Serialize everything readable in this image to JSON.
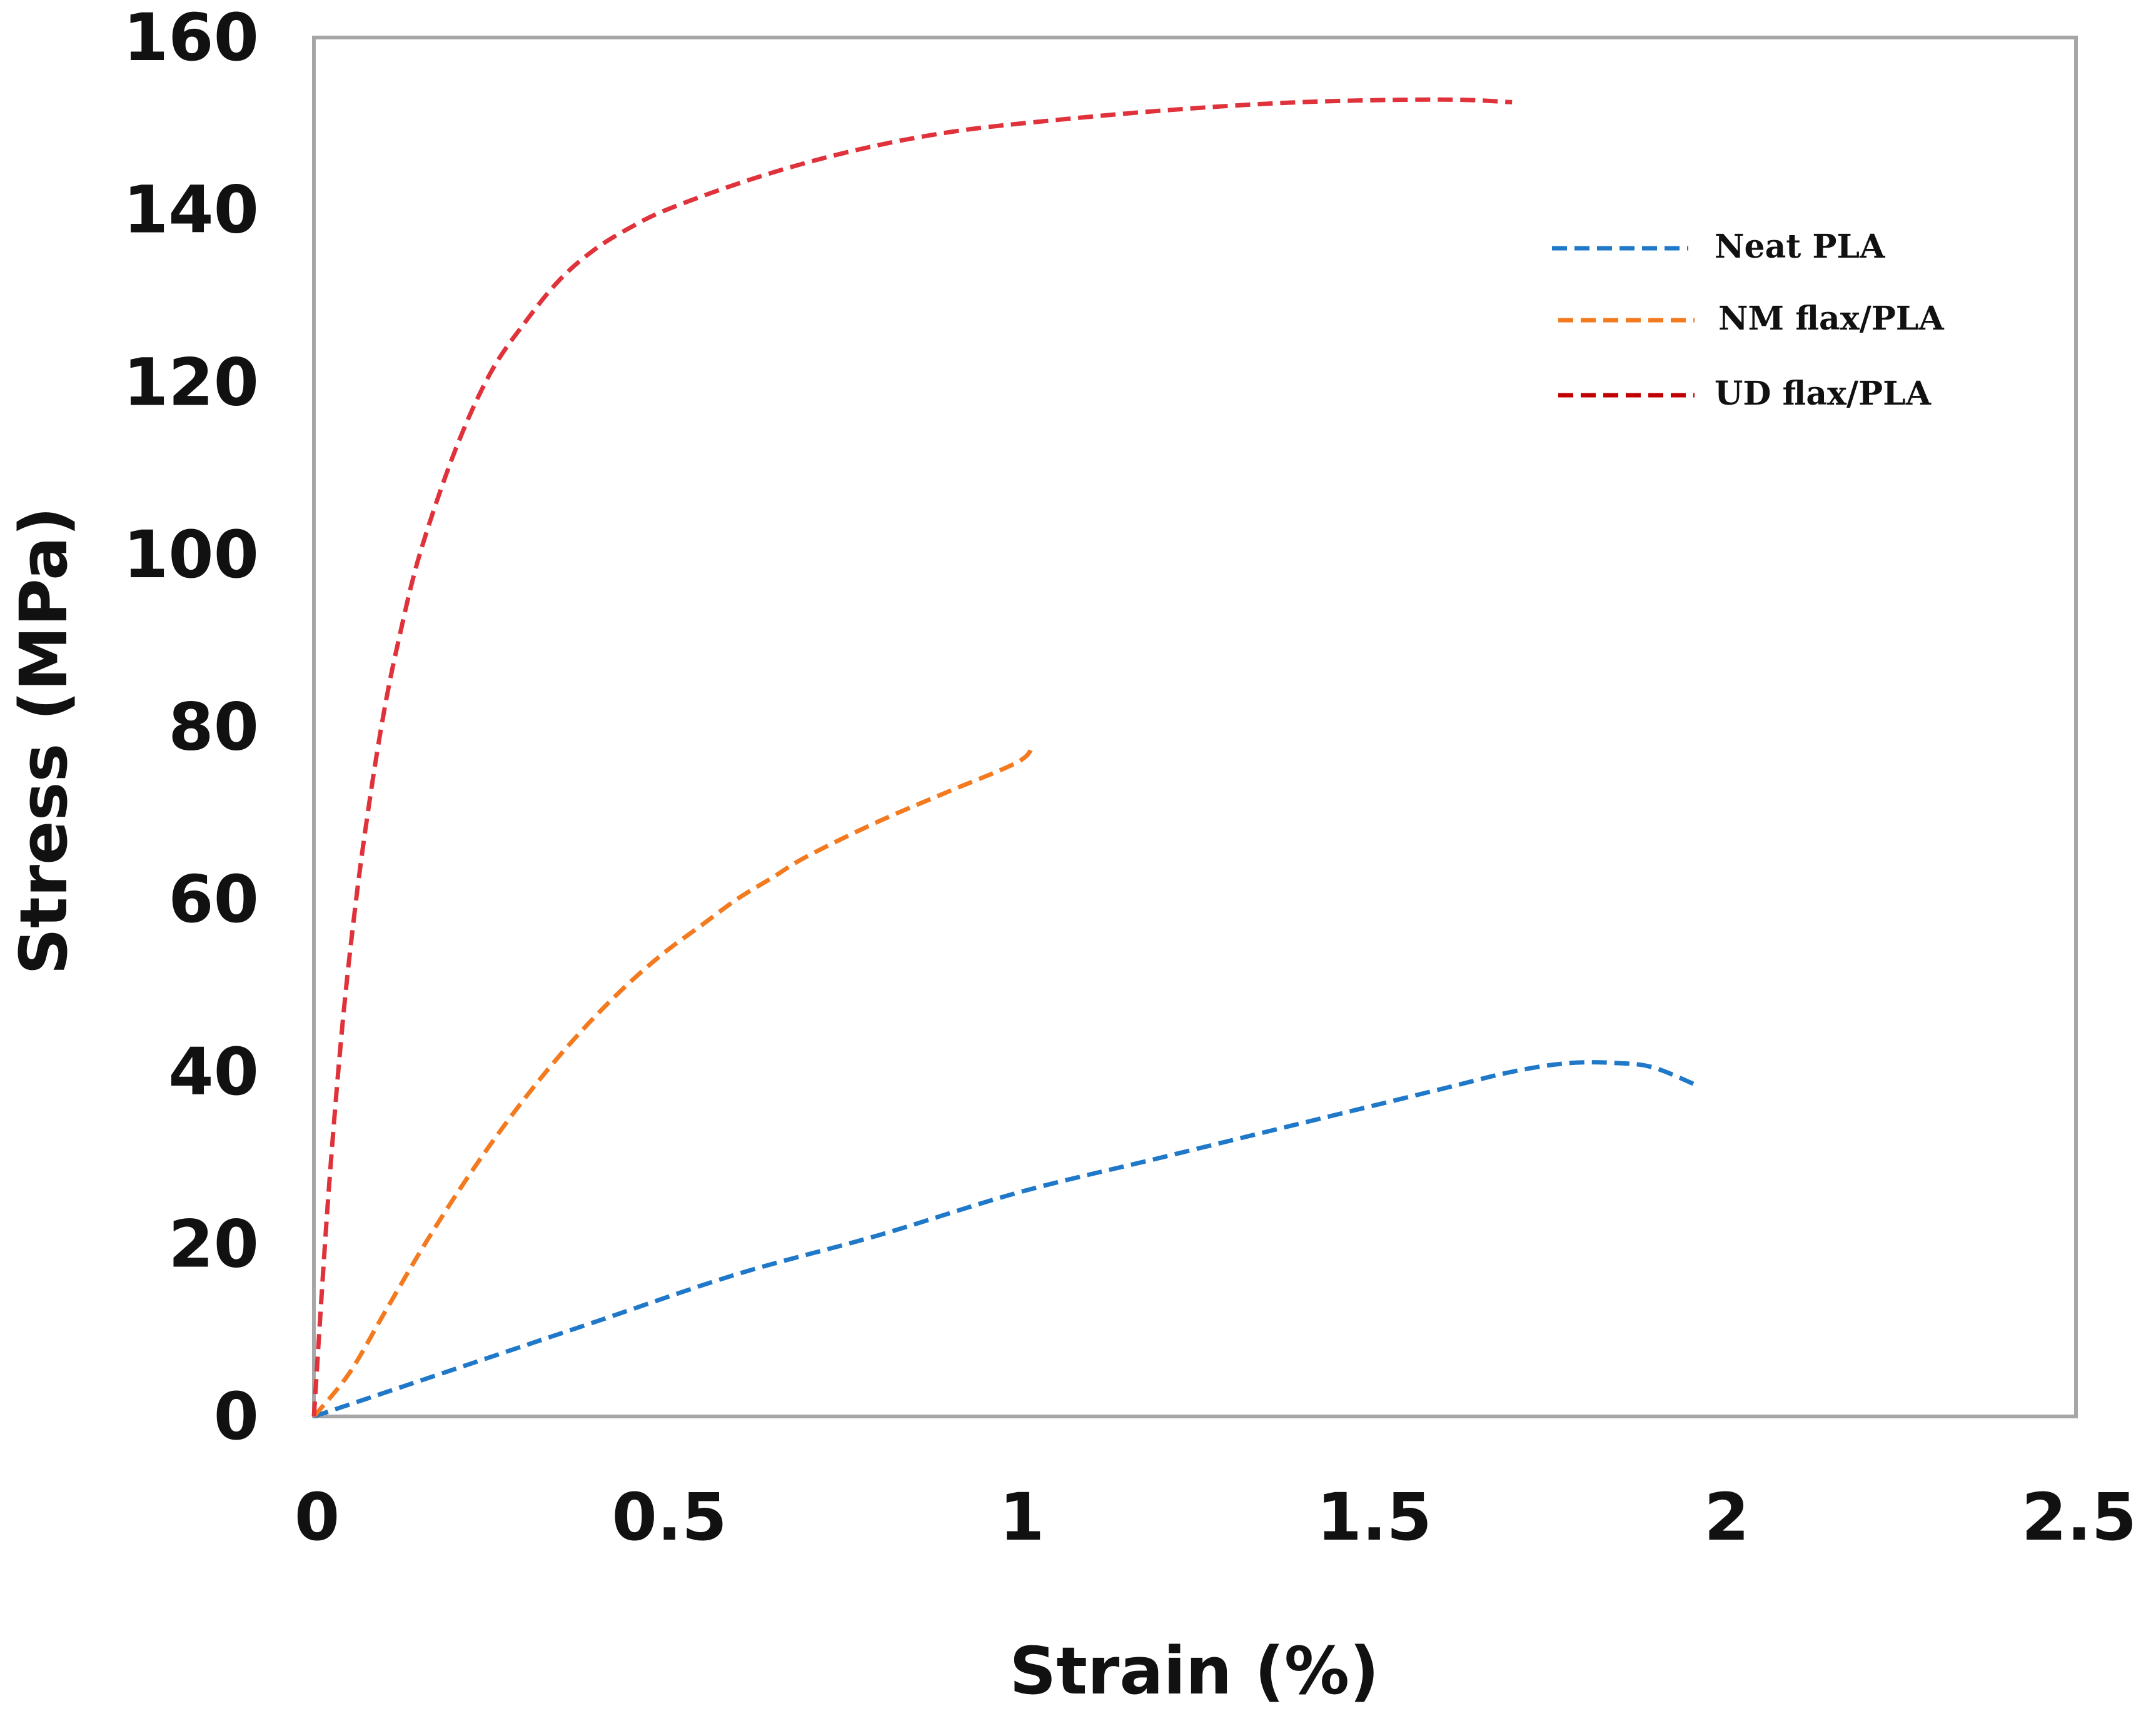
{
  "chart_data": {
    "type": "line",
    "title": "",
    "xlabel": "Strain (%)",
    "ylabel": "Stress (MPa)",
    "xlim": [
      0,
      2.5
    ],
    "ylim": [
      0,
      160
    ],
    "xticks": [
      0,
      0.5,
      1,
      1.5,
      2,
      2.5
    ],
    "xtick_labels": [
      "0",
      "0.5",
      "1",
      "1.5",
      "2",
      "2.5"
    ],
    "yticks": [
      0,
      20,
      40,
      60,
      80,
      100,
      120,
      140,
      160
    ],
    "ytick_labels": [
      "0",
      "20",
      "40",
      "60",
      "80",
      "100",
      "120",
      "140",
      "160"
    ],
    "grid": false,
    "legend_position": "top-right",
    "series": [
      {
        "name": "Neat PLA",
        "color": "#1f78c8",
        "x": [
          0,
          0.2,
          0.4,
          0.6,
          0.8,
          1.0,
          1.2,
          1.4,
          1.6,
          1.7,
          1.78,
          1.85,
          1.9,
          1.96
        ],
        "y": [
          0,
          5.5,
          11,
          16.5,
          21,
          26,
          30,
          34,
          38,
          40,
          41,
          41,
          40.5,
          38.5
        ]
      },
      {
        "name": "NM flax/PLA",
        "color": "#f47a1f",
        "x": [
          0,
          0.05,
          0.1,
          0.15,
          0.2,
          0.25,
          0.3,
          0.35,
          0.4,
          0.45,
          0.5,
          0.55,
          0.6,
          0.65,
          0.7,
          0.8,
          0.9,
          1.0,
          1.02
        ],
        "y": [
          0,
          5,
          12,
          19,
          25.5,
          31.5,
          37,
          42,
          46.5,
          50.5,
          54,
          57,
          60,
          62.5,
          65,
          69,
          72.5,
          76,
          78
        ]
      },
      {
        "name": "UD flax/PLA",
        "color": "#e0323a",
        "x": [
          0,
          0.02,
          0.04,
          0.06,
          0.08,
          0.1,
          0.12,
          0.15,
          0.2,
          0.25,
          0.3,
          0.35,
          0.4,
          0.45,
          0.5,
          0.6,
          0.7,
          0.8,
          0.9,
          1.0,
          1.2,
          1.4,
          1.6,
          1.7
        ],
        "y": [
          0,
          25,
          45,
          60,
          72,
          82,
          90,
          100,
          112,
          121,
          127,
          132,
          135.5,
          138,
          140,
          143,
          145.5,
          147.5,
          149,
          150,
          151.5,
          152.5,
          152.8,
          152.5
        ]
      }
    ],
    "legend_colors": [
      "#1f78c8",
      "#f47a1f",
      "#c00000"
    ]
  }
}
